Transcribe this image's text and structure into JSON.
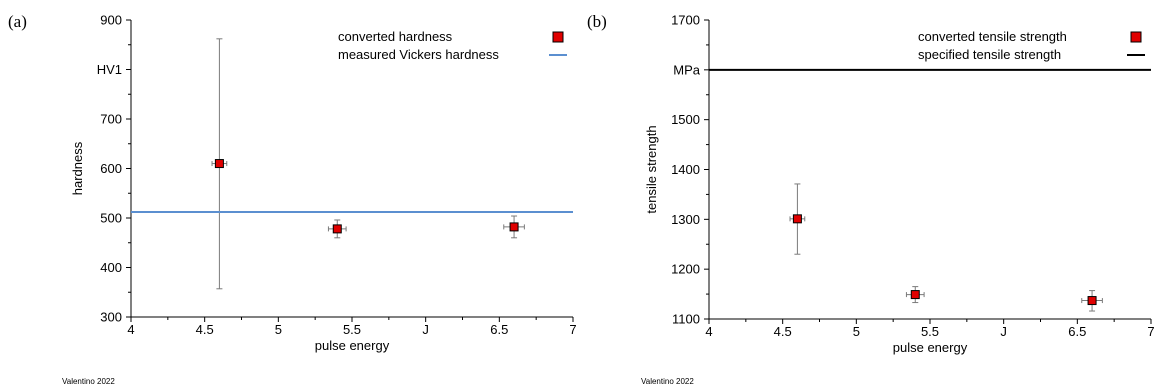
{
  "chart_data": [
    {
      "type": "scatter",
      "panel_label": "(a)",
      "xlabel": "pulse energy",
      "ylabel": "hardness",
      "xlim": [
        4,
        7
      ],
      "ylim": [
        300,
        900
      ],
      "xticks": [
        "4",
        "4.5",
        "5",
        "5.5",
        "J",
        "6.5",
        "7"
      ],
      "yticks": [
        "300",
        "400",
        "500",
        "600",
        "700",
        "HV1",
        "900"
      ],
      "series": [
        {
          "name": "converted hardness",
          "marker": "square",
          "color": "#e00000",
          "x": [
            4.6,
            5.4,
            6.6
          ],
          "y": [
            610,
            478,
            482
          ],
          "y_err_low": [
            357,
            460,
            460
          ],
          "y_err_high": [
            862,
            496,
            504
          ],
          "x_err": [
            0.05,
            0.06,
            0.07
          ]
        },
        {
          "name": "measured Vickers hardness",
          "kind": "hline",
          "color": "#5b8fd0",
          "y": 512
        }
      ],
      "legend_position": "top-right",
      "credit": "Valentino 2022"
    },
    {
      "type": "scatter",
      "panel_label": "(b)",
      "xlabel": "pulse energy",
      "ylabel": "tensile strength",
      "xlim": [
        4,
        7
      ],
      "ylim": [
        1100,
        1700
      ],
      "xticks": [
        "4",
        "4.5",
        "5",
        "5.5",
        "J",
        "6.5",
        "7"
      ],
      "yticks": [
        "1100",
        "1200",
        "1300",
        "1400",
        "1500",
        "MPa",
        "1700"
      ],
      "series": [
        {
          "name": "converted tensile strength",
          "marker": "square",
          "color": "#e00000",
          "x": [
            4.6,
            5.4,
            6.6
          ],
          "y": [
            1301,
            1149,
            1137
          ],
          "y_err_low": [
            1230,
            1133,
            1116
          ],
          "y_err_high": [
            1371,
            1165,
            1157
          ],
          "x_err": [
            0.05,
            0.06,
            0.07
          ]
        },
        {
          "name": "specified tensile strength",
          "kind": "hline",
          "color": "#000000",
          "y": 1600
        }
      ],
      "legend_position": "top-right",
      "credit": "Valentino 2022"
    }
  ]
}
